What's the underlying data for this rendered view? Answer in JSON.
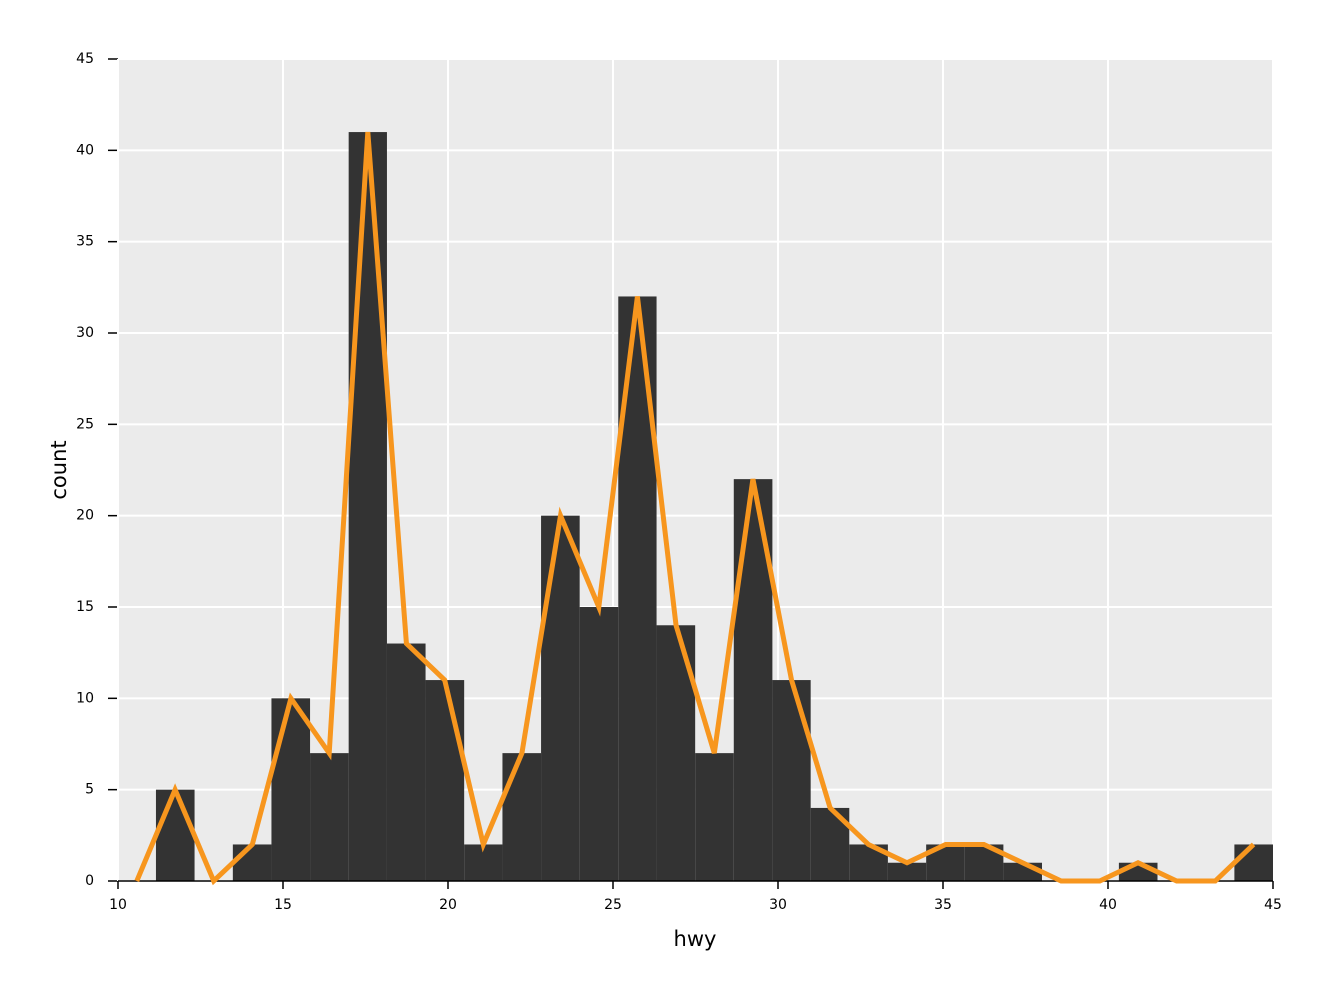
{
  "chart_data": {
    "type": "histogram",
    "x_label": "hwy",
    "y_label": "count",
    "bins": [
      11.15,
      12.32,
      13.48,
      14.65,
      15.82,
      16.99,
      18.15,
      19.32,
      20.49,
      21.65,
      22.82,
      23.99,
      25.16,
      26.32,
      27.49,
      28.66,
      29.83,
      30.99,
      32.16,
      33.33,
      34.49,
      35.66,
      36.83,
      38.0,
      39.16,
      40.33,
      41.5,
      42.66,
      43.83,
      45.0
    ],
    "values": [
      5,
      0,
      2,
      10,
      7,
      41,
      13,
      11,
      2,
      7,
      20,
      15,
      32,
      14,
      7,
      22,
      11,
      4,
      2,
      1,
      2,
      2,
      1,
      0,
      0,
      1,
      0,
      0,
      2
    ],
    "color": "#333333",
    "line": {
      "x": [
        10.57,
        11.73,
        12.9,
        14.07,
        15.24,
        16.4,
        17.57,
        18.74,
        19.9,
        21.07,
        22.24,
        23.41,
        24.57,
        25.74,
        26.91,
        28.07,
        29.24,
        30.41,
        31.58,
        32.74,
        33.91,
        35.08,
        36.24,
        37.41,
        38.58,
        39.75,
        40.91,
        42.08,
        43.25,
        44.41
      ],
      "values": [
        0,
        5,
        0,
        2,
        10,
        7,
        41,
        13,
        11,
        2,
        7,
        20,
        15,
        32,
        14,
        7,
        22,
        11,
        4,
        2,
        1,
        2,
        2,
        1,
        0,
        0,
        1,
        0,
        0,
        2
      ],
      "color": "#f7961e"
    },
    "xlim": [
      10,
      45
    ],
    "xticks": [
      10,
      15,
      20,
      25,
      30,
      35,
      40,
      45
    ],
    "ylim": [
      0,
      45
    ],
    "yticks": [
      0,
      5,
      10,
      15,
      20,
      25,
      30,
      35,
      40,
      45
    ],
    "grid": true,
    "panel_color": "#ebebeb"
  }
}
